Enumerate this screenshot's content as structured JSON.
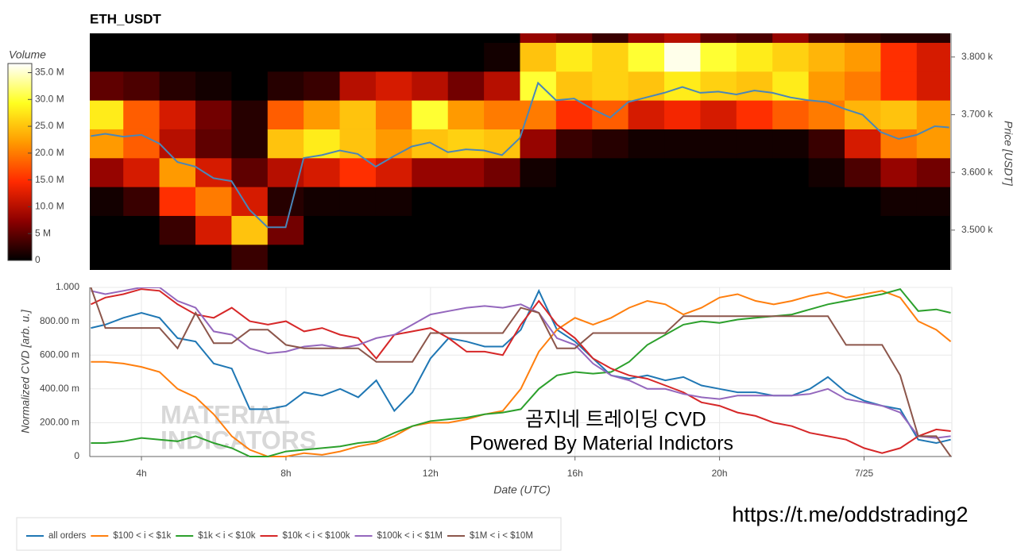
{
  "chart_data": [
    {
      "type": "heatmap",
      "title": "ETH_USDT",
      "ylabel": "Price [USDT]",
      "colorbar_title": "Volume",
      "xlim": [
        2.57,
        26.43
      ],
      "ylim": [
        3431,
        3841
      ],
      "yticks": [
        {
          "value": 3500,
          "label": "3.500 k"
        },
        {
          "value": 3600,
          "label": "3.600 k"
        },
        {
          "value": 3700,
          "label": "3.700 k"
        },
        {
          "value": 3800,
          "label": "3.800 k"
        }
      ],
      "zlim": [
        0,
        36700000.0
      ],
      "zticks": [
        0,
        {
          "value": 5000000.0,
          "label": "5 M"
        },
        {
          "value": 10000000.0,
          "label": "10.0 M"
        },
        {
          "value": 15000000.0,
          "label": "15.0 M"
        },
        {
          "value": 20000000.0,
          "label": "20.0 M"
        },
        {
          "value": 25000000.0,
          "label": "25.0 M"
        },
        {
          "value": 30000000.0,
          "label": "30.0 M"
        },
        {
          "value": 35000000.0,
          "label": "35.0 M"
        }
      ],
      "colors": [
        "#000000",
        "#8c0000",
        "#ff2a00",
        "#ff9a00",
        "#ffff20",
        "#ffffff"
      ],
      "x": [
        3,
        4,
        5,
        6,
        7,
        8,
        9,
        10,
        11,
        12,
        13,
        14,
        15,
        16,
        17,
        18,
        19,
        20,
        21,
        22,
        23,
        24,
        25,
        26
      ],
      "y_bins": [
        3425,
        3475,
        3525,
        3575,
        3625,
        3675,
        3725,
        3775,
        3825,
        3875
      ],
      "z": [
        [
          0,
          0,
          1000000.0,
          8000000.0,
          22000000.0,
          28000000.0,
          5000000.0,
          0,
          0
        ],
        [
          0,
          0,
          3000000.0,
          12000000.0,
          18000000.0,
          18000000.0,
          4000000.0,
          0,
          0
        ],
        [
          0,
          3000000.0,
          15000000.0,
          22000000.0,
          10000000.0,
          12000000.0,
          2000000.0,
          0,
          0
        ],
        [
          0,
          12000000.0,
          20000000.0,
          12000000.0,
          5000000.0,
          6000000.0,
          1000000.0,
          0,
          0
        ],
        [
          3000000.0,
          25000000.0,
          12000000.0,
          5000000.0,
          2000000.0,
          2000000.0,
          0,
          0,
          0
        ],
        [
          0,
          6000000.0,
          2000000.0,
          10000000.0,
          25000000.0,
          18000000.0,
          2000000.0,
          0,
          0
        ],
        [
          0,
          0,
          1000000.0,
          12000000.0,
          28000000.0,
          22000000.0,
          3000000.0,
          0,
          0
        ],
        [
          0,
          0,
          1000000.0,
          15000000.0,
          25000000.0,
          25000000.0,
          10000000.0,
          0,
          0
        ],
        [
          0,
          0,
          1000000.0,
          12000000.0,
          22000000.0,
          20000000.0,
          12000000.0,
          0,
          0
        ],
        [
          0,
          0,
          0,
          8000000.0,
          25000000.0,
          30000000.0,
          10000000.0,
          0,
          0
        ],
        [
          0,
          0,
          0,
          8000000.0,
          26000000.0,
          22000000.0,
          6000000.0,
          0,
          0
        ],
        [
          0,
          0,
          0,
          6000000.0,
          25000000.0,
          20000000.0,
          10000000.0,
          1000000.0,
          0
        ],
        [
          0,
          0,
          0,
          1000000.0,
          8000000.0,
          20000000.0,
          30000000.0,
          25000000.0,
          8000000.0
        ],
        [
          0,
          0,
          0,
          0,
          3000000.0,
          15000000.0,
          25000000.0,
          28000000.0,
          6000000.0
        ],
        [
          0,
          0,
          0,
          0,
          2000000.0,
          18000000.0,
          26000000.0,
          26000000.0,
          3000000.0
        ],
        [
          0,
          0,
          0,
          0,
          1000000.0,
          12000000.0,
          25000000.0,
          30000000.0,
          8000000.0
        ],
        [
          0,
          0,
          0,
          0,
          1000000.0,
          14000000.0,
          28000000.0,
          36000000.0,
          10000000.0
        ],
        [
          0,
          0,
          0,
          0,
          1000000.0,
          12000000.0,
          26000000.0,
          30000000.0,
          5000000.0
        ],
        [
          0,
          0,
          0,
          0,
          1000000.0,
          15000000.0,
          25000000.0,
          28000000.0,
          4000000.0
        ],
        [
          0,
          0,
          0,
          0,
          1000000.0,
          18000000.0,
          28000000.0,
          26000000.0,
          8000000.0
        ],
        [
          0,
          0,
          0,
          1000000.0,
          3000000.0,
          20000000.0,
          22000000.0,
          24000000.0,
          4000000.0
        ],
        [
          0,
          0,
          0,
          4000000.0,
          12000000.0,
          24000000.0,
          20000000.0,
          22000000.0,
          3000000.0
        ],
        [
          0,
          0,
          1000000.0,
          8000000.0,
          20000000.0,
          25000000.0,
          15000000.0,
          15000000.0,
          2000000.0
        ],
        [
          0,
          0,
          1000000.0,
          6000000.0,
          22000000.0,
          22000000.0,
          12000000.0,
          12000000.0,
          2000000.0
        ]
      ],
      "line": {
        "color": "#4a86b8",
        "x": [
          2.6,
          3,
          3.5,
          4,
          4.5,
          5,
          5.5,
          6,
          6.5,
          7,
          7.5,
          8,
          8.5,
          9,
          9.5,
          10,
          10.5,
          11,
          11.5,
          12,
          12.5,
          13,
          13.5,
          14,
          14.5,
          15,
          15.5,
          16,
          16.5,
          17,
          17.5,
          18,
          18.5,
          19,
          19.5,
          20,
          20.5,
          21,
          21.5,
          22,
          22.5,
          23,
          23.5,
          24,
          24.5,
          25,
          25.5,
          26,
          26.4
        ],
        "values": [
          3663,
          3667,
          3662,
          3665,
          3650,
          3618,
          3610,
          3590,
          3585,
          3535,
          3505,
          3505,
          3625,
          3630,
          3638,
          3632,
          3610,
          3628,
          3645,
          3652,
          3635,
          3640,
          3638,
          3630,
          3660,
          3755,
          3725,
          3728,
          3710,
          3695,
          3722,
          3730,
          3738,
          3748,
          3738,
          3740,
          3735,
          3742,
          3738,
          3730,
          3725,
          3722,
          3710,
          3700,
          3670,
          3658,
          3665,
          3680,
          3678
        ]
      }
    },
    {
      "type": "line",
      "ylabel": "Normalized CVD [arb. u.]",
      "xlabel": "Date (UTC)",
      "xlim": [
        2.57,
        26.43
      ],
      "ylim": [
        0,
        1
      ],
      "xticks": [
        {
          "value": 4,
          "label": "4h"
        },
        {
          "value": 8,
          "label": "8h"
        },
        {
          "value": 12,
          "label": "12h"
        },
        {
          "value": 16,
          "label": "16h"
        },
        {
          "value": 20,
          "label": "20h"
        },
        {
          "value": 24,
          "label": "7/25"
        }
      ],
      "yticks": [
        0,
        {
          "value": 0.2,
          "label": "200.00 m"
        },
        {
          "value": 0.4,
          "label": "400.00 m"
        },
        {
          "value": 0.6,
          "label": "600.00 m"
        },
        {
          "value": 0.8,
          "label": "800.00 m"
        },
        {
          "value": 1,
          "label": "1.000"
        }
      ],
      "grid": true,
      "legend": "bottom-left",
      "annotations": [
        "곰지네 트레이딩 CVD",
        "Powered By Material Indictors"
      ],
      "watermark": [
        "MATERIAL",
        "INDICATORS"
      ],
      "x": [
        2.6,
        3,
        3.5,
        4,
        4.5,
        5,
        5.5,
        6,
        6.5,
        7,
        7.5,
        8,
        8.5,
        9,
        9.5,
        10,
        10.5,
        11,
        11.5,
        12,
        12.5,
        13,
        13.5,
        14,
        14.5,
        15,
        15.5,
        16,
        16.5,
        17,
        17.5,
        18,
        18.5,
        19,
        19.5,
        20,
        20.5,
        21,
        21.5,
        22,
        22.5,
        23,
        23.5,
        24,
        24.5,
        25,
        25.5,
        26,
        26.4
      ],
      "series": [
        {
          "name": "all orders",
          "color": "#1f77b4",
          "values": [
            0.76,
            0.78,
            0.82,
            0.85,
            0.82,
            0.7,
            0.68,
            0.55,
            0.52,
            0.28,
            0.28,
            0.3,
            0.38,
            0.36,
            0.4,
            0.35,
            0.45,
            0.27,
            0.38,
            0.58,
            0.7,
            0.68,
            0.65,
            0.65,
            0.75,
            0.98,
            0.75,
            0.68,
            0.58,
            0.48,
            0.46,
            0.48,
            0.45,
            0.47,
            0.42,
            0.4,
            0.38,
            0.38,
            0.36,
            0.36,
            0.4,
            0.47,
            0.38,
            0.33,
            0.3,
            0.28,
            0.1,
            0.08,
            0.1
          ]
        },
        {
          "name": "$100 < i < $1k",
          "color": "#ff7f0e",
          "values": [
            0.56,
            0.56,
            0.55,
            0.53,
            0.5,
            0.4,
            0.35,
            0.25,
            0.12,
            0.04,
            0.0,
            0.0,
            0.02,
            0.01,
            0.03,
            0.06,
            0.08,
            0.12,
            0.18,
            0.2,
            0.2,
            0.22,
            0.25,
            0.27,
            0.4,
            0.62,
            0.75,
            0.82,
            0.78,
            0.82,
            0.88,
            0.92,
            0.9,
            0.84,
            0.88,
            0.94,
            0.96,
            0.92,
            0.9,
            0.92,
            0.95,
            0.97,
            0.94,
            0.96,
            0.98,
            0.94,
            0.8,
            0.75,
            0.68
          ]
        },
        {
          "name": "$1k < i < $10k",
          "color": "#2ca02c",
          "values": [
            0.08,
            0.08,
            0.09,
            0.11,
            0.1,
            0.09,
            0.12,
            0.08,
            0.05,
            0.0,
            0.0,
            0.03,
            0.04,
            0.05,
            0.06,
            0.08,
            0.09,
            0.14,
            0.18,
            0.21,
            0.22,
            0.23,
            0.25,
            0.26,
            0.28,
            0.4,
            0.48,
            0.5,
            0.49,
            0.5,
            0.56,
            0.66,
            0.72,
            0.78,
            0.8,
            0.79,
            0.81,
            0.82,
            0.83,
            0.84,
            0.87,
            0.9,
            0.92,
            0.94,
            0.96,
            0.99,
            0.86,
            0.87,
            0.85
          ]
        },
        {
          "name": "$10k < i < $100k",
          "color": "#d62728",
          "values": [
            0.9,
            0.94,
            0.96,
            0.99,
            0.98,
            0.9,
            0.84,
            0.82,
            0.88,
            0.8,
            0.78,
            0.8,
            0.74,
            0.76,
            0.72,
            0.7,
            0.58,
            0.72,
            0.74,
            0.76,
            0.7,
            0.62,
            0.62,
            0.6,
            0.78,
            0.92,
            0.78,
            0.7,
            0.58,
            0.52,
            0.48,
            0.46,
            0.42,
            0.38,
            0.32,
            0.3,
            0.26,
            0.24,
            0.2,
            0.18,
            0.14,
            0.12,
            0.1,
            0.05,
            0.02,
            0.05,
            0.12,
            0.16,
            0.15
          ]
        },
        {
          "name": "$100k < i < $1M",
          "color": "#9467bd",
          "values": [
            0.98,
            0.96,
            0.98,
            1.0,
            1.0,
            0.92,
            0.88,
            0.74,
            0.72,
            0.64,
            0.61,
            0.62,
            0.65,
            0.66,
            0.64,
            0.66,
            0.7,
            0.72,
            0.78,
            0.84,
            0.86,
            0.88,
            0.89,
            0.88,
            0.9,
            0.85,
            0.7,
            0.66,
            0.55,
            0.48,
            0.45,
            0.4,
            0.4,
            0.37,
            0.35,
            0.34,
            0.36,
            0.36,
            0.36,
            0.36,
            0.37,
            0.4,
            0.34,
            0.32,
            0.3,
            0.26,
            0.12,
            0.11,
            0.12
          ]
        },
        {
          "name": "$1M < i < $10M",
          "color": "#8c564b",
          "values": [
            1.0,
            0.76,
            0.76,
            0.76,
            0.76,
            0.64,
            0.85,
            0.67,
            0.67,
            0.75,
            0.75,
            0.66,
            0.64,
            0.64,
            0.64,
            0.64,
            0.56,
            0.56,
            0.56,
            0.73,
            0.73,
            0.73,
            0.73,
            0.73,
            0.88,
            0.85,
            0.64,
            0.64,
            0.73,
            0.73,
            0.73,
            0.73,
            0.73,
            0.83,
            0.83,
            0.83,
            0.83,
            0.83,
            0.83,
            0.83,
            0.83,
            0.83,
            0.66,
            0.66,
            0.66,
            0.48,
            0.12,
            0.12,
            0.0
          ]
        }
      ]
    }
  ],
  "footer": "https://t.me/oddstrading2"
}
